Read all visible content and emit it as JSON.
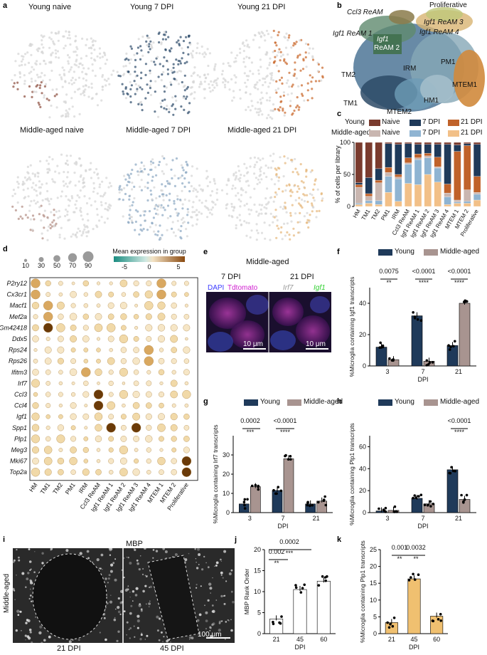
{
  "letters": [
    "a",
    "b",
    "c",
    "d",
    "e",
    "f",
    "g",
    "h",
    "i",
    "j",
    "k"
  ],
  "a": {
    "titles": [
      "Young naive",
      "Young 7 DPI",
      "Young 21 DPI",
      "Middle-aged naive",
      "Middle-aged 7 DPI",
      "Middle-aged 21 DPI"
    ],
    "colors": [
      "#8a4a3a",
      "#2c4a6a",
      "#c9672a",
      "#b08a80",
      "#8aa6c2",
      "#e6b77a"
    ]
  },
  "b": {
    "clusters": [
      "Ccl3 ReAM",
      "Proliferative",
      "Igf1 ReAM 3",
      "Igf1 ReAM 1",
      "Igf1 ReAM 4",
      "Igf1",
      "ReAM 2",
      "PM1",
      "IRM",
      "TM2",
      "MTEM1",
      "HM1",
      "TM1",
      "MTEM2"
    ]
  },
  "c": {
    "legend_young": "Young",
    "legend_mid": "Middle-aged",
    "legend_items": [
      "Naive",
      "7 DPI",
      "21 DPI"
    ],
    "colors": {
      "young_naive": "#7a3b2e",
      "young_7": "#1f3a5a",
      "young_21": "#c0622a",
      "mid_naive": "#c9b6b0",
      "mid_7": "#8fb4d2",
      "mid_21": "#f2c088"
    }
  },
  "chart_data": [
    {
      "panel": "c",
      "type": "bar",
      "stacked": true,
      "ylabel": "% of cells per library",
      "ylim": [
        0,
        100
      ],
      "yticks": [
        0,
        50,
        100
      ],
      "categories": [
        "HM",
        "TM1",
        "TM2",
        "PM1",
        "IRM",
        "Ccl3 ReAM",
        "Igf1 ReAM 1",
        "Igf1 ReAM 2",
        "Igf1 ReAM 3",
        "Igf1 ReAM 4",
        "MTEM 1",
        "MTEM 2",
        "Proliferative"
      ],
      "series": [
        {
          "name": "Middle-aged 21 DPI",
          "values": [
            3,
            5,
            3,
            22,
            8,
            36,
            34,
            50,
            38,
            3,
            5,
            5,
            10
          ]
        },
        {
          "name": "Middle-aged 7 DPI",
          "values": [
            2,
            4,
            6,
            25,
            35,
            30,
            39,
            26,
            22,
            12,
            2,
            3,
            9
          ]
        },
        {
          "name": "Middle-aged Naive",
          "values": [
            25,
            7,
            28,
            6,
            3,
            2,
            3,
            3,
            2,
            6,
            3,
            18,
            3
          ]
        },
        {
          "name": "Young 21 DPI",
          "values": [
            4,
            4,
            4,
            8,
            4,
            8,
            6,
            4,
            15,
            14,
            76,
            69,
            25
          ]
        },
        {
          "name": "Young 7 DPI",
          "values": [
            3,
            25,
            18,
            37,
            47,
            22,
            15,
            14,
            20,
            62,
            10,
            3,
            50
          ]
        },
        {
          "name": "Young Naive",
          "values": [
            63,
            55,
            41,
            2,
            3,
            2,
            3,
            3,
            3,
            3,
            4,
            2,
            3
          ]
        }
      ]
    },
    {
      "panel": "d",
      "type": "scatter",
      "title": "Mean expression in group",
      "size_legend": [
        10,
        30,
        50,
        70,
        90
      ],
      "colorbar_ticks": [
        -5,
        0,
        5
      ],
      "genes": [
        "P2ry12",
        "Cx3cr1",
        "Macf1",
        "Mef2a",
        "Gm42418",
        "Ddx5",
        "Rps24",
        "Rps26",
        "Ifitm3",
        "Irf7",
        "Ccl3",
        "Ccl4",
        "Igf1",
        "Spp1",
        "Plp1",
        "Meg3",
        "Mki67",
        "Top2a"
      ],
      "groups": [
        "HM",
        "TM1",
        "TM2",
        "PM1",
        "IRM",
        "Ccl3 ReAM",
        "Igf1 ReAM 1",
        "Igf1 ReAM 2",
        "Igf1 ReAM 3",
        "Igf1 ReAM 4",
        "MTEM 1",
        "MTEM 2",
        "Proliferative"
      ]
    },
    {
      "panel": "f",
      "type": "bar",
      "xlabel": "DPI",
      "ylabel": "%Microglia containing Igf1 transcripts",
      "ylim": [
        0,
        50
      ],
      "yticks": [
        0,
        20,
        40
      ],
      "categories": [
        "3",
        "7",
        "21"
      ],
      "series": [
        {
          "name": "Young",
          "values": [
            12,
            32,
            13
          ]
        },
        {
          "name": "Middle-aged",
          "values": [
            4,
            3,
            40
          ]
        }
      ],
      "pvalues": [
        "0.0075",
        "<0.0001",
        "<0.0001"
      ],
      "stars": [
        "**",
        "****",
        "****"
      ]
    },
    {
      "panel": "g",
      "type": "bar",
      "xlabel": "DPI",
      "ylabel": "%Microglia containing Irf7 transcripts",
      "ylim": [
        0,
        40
      ],
      "yticks": [
        0,
        10,
        20,
        30
      ],
      "categories": [
        "3",
        "7",
        "21"
      ],
      "series": [
        {
          "name": "Young",
          "values": [
            4.5,
            11.5,
            4.5
          ]
        },
        {
          "name": "Middle-aged",
          "values": [
            13.5,
            28,
            6
          ]
        }
      ],
      "pvalues": [
        "0.0002",
        "<0.0001"
      ],
      "stars": [
        "***",
        "****"
      ]
    },
    {
      "panel": "h",
      "type": "bar",
      "xlabel": "DPI",
      "ylabel": "%Microglia containing Plp1 transcripts",
      "ylim": [
        0,
        70
      ],
      "yticks": [
        0,
        20,
        40,
        60
      ],
      "categories": [
        "3",
        "7",
        "21"
      ],
      "series": [
        {
          "name": "Young",
          "values": [
            1.5,
            13,
            39
          ]
        },
        {
          "name": "Middle-aged",
          "values": [
            2,
            8,
            12
          ]
        }
      ],
      "pvalues": [
        "<0.0001"
      ],
      "stars": [
        "****"
      ]
    },
    {
      "panel": "j",
      "type": "bar",
      "xlabel": "DPI",
      "ylabel": "MBP Rank Order",
      "ylim": [
        0,
        20
      ],
      "yticks": [
        0,
        5,
        10,
        15,
        20
      ],
      "categories": [
        "21",
        "45",
        "60"
      ],
      "values": [
        3.5,
        10.5,
        12.5
      ],
      "pvalues": [
        "0.002",
        "0.0002"
      ],
      "stars": [
        "**",
        "***"
      ]
    },
    {
      "panel": "k",
      "type": "bar",
      "xlabel": "DPI",
      "ylabel": "%Microglia containing Plp1 transcripts",
      "ylim": [
        0,
        25
      ],
      "yticks": [
        0,
        5,
        10,
        15,
        20,
        25
      ],
      "categories": [
        "21",
        "45",
        "60"
      ],
      "values": [
        3.3,
        16.3,
        5.2
      ],
      "pvalues": [
        "0.001",
        "0.0032"
      ],
      "stars": [
        "**",
        "**"
      ]
    }
  ],
  "e": {
    "title": "Middle-aged",
    "left_day": "7 DPI",
    "right_day": "21 DPI",
    "stains": [
      "DAPI",
      "Tdtomato",
      "Irf7",
      "Igf1"
    ],
    "stain_colors": [
      "#3a3aff",
      "#d020d0",
      "#dddddd",
      "#30d030"
    ],
    "scalebar_left": "10 μm",
    "scalebar_right": "10 μm"
  },
  "legend_fgh": {
    "young": "Young",
    "mid": "Middle-aged",
    "young_color": "#1f3a5a",
    "mid_color": "#a89490"
  },
  "i": {
    "title": "MBP",
    "side_label": "Middle-aged",
    "left_day": "21 DPI",
    "right_day": "45 DPI",
    "scalebar": "100 μm"
  }
}
